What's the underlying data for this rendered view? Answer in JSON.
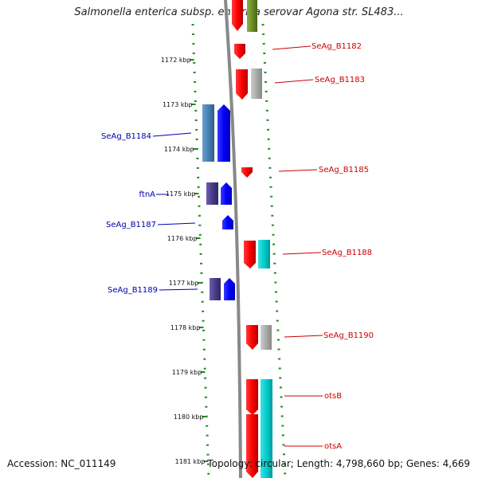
{
  "title": "Salmonella enterica subsp. enterica serovar Agona str. SL483...",
  "footer": {
    "accession": "Accession: NC_011149",
    "topology": "Topology: circular; Length: 4,798,660 bp; Genes: 4,669"
  },
  "ticks": [
    {
      "label": "1172 kbp"
    },
    {
      "label": "1173 kbp"
    },
    {
      "label": "1174 kbp"
    },
    {
      "label": "1175 kbp"
    },
    {
      "label": "1176 kbp"
    },
    {
      "label": "1177 kbp"
    },
    {
      "label": "1178 kbp"
    },
    {
      "label": "1179 kbp"
    },
    {
      "label": "1180 kbp"
    },
    {
      "label": "1181 kbp"
    }
  ],
  "genes_left": [
    {
      "label": "SeAg_B1184",
      "color": "#0000aa"
    },
    {
      "label": "ftnA",
      "color": "#0000aa"
    },
    {
      "label": "SeAg_B1187",
      "color": "#0000aa"
    },
    {
      "label": "SeAg_B1189",
      "color": "#0000aa"
    }
  ],
  "genes_right": [
    {
      "label": "SeAg_B1182",
      "color": "#cc0000"
    },
    {
      "label": "SeAg_B1183",
      "color": "#cc0000"
    },
    {
      "label": "SeAg_B1185",
      "color": "#cc0000"
    },
    {
      "label": "SeAg_B1188",
      "color": "#cc0000"
    },
    {
      "label": "SeAg_B1190",
      "color": "#cc0000"
    },
    {
      "label": "otsB",
      "color": "#cc0000"
    },
    {
      "label": "otsA",
      "color": "#cc0000"
    }
  ],
  "colors": {
    "forward_cds": "#ff0000",
    "reverse_cds": "#0000ff",
    "dotted_ring": "#228b22",
    "backbone": "#888888",
    "feature_cyan": "#00cccc",
    "feature_gray": "#aaaaaa",
    "feature_olive": "#6b8e23",
    "feature_steel": "#4682b4",
    "feature_indigo": "#483d8b"
  }
}
